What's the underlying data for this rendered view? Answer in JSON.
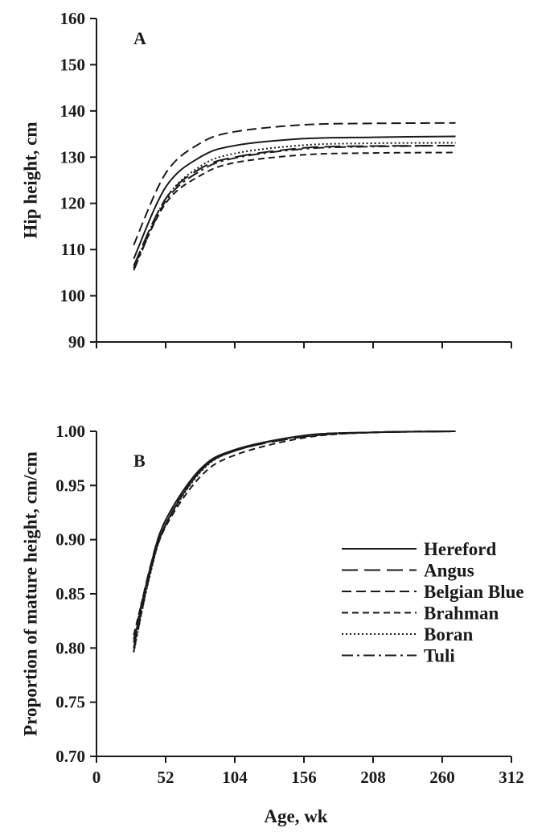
{
  "chart_data": [
    {
      "type": "line",
      "panel_label": "A",
      "xlabel": "",
      "ylabel": "Hip height, cm",
      "xlim": [
        0,
        312
      ],
      "ylim": [
        90,
        160
      ],
      "xticks": [
        0,
        52,
        104,
        156,
        208,
        260,
        312
      ],
      "yticks": [
        90,
        100,
        110,
        120,
        130,
        140,
        150,
        160
      ],
      "show_x_tick_labels": false,
      "series": [
        {
          "name": "Hereford",
          "x": [
            28,
            52,
            78,
            104,
            156,
            208,
            270
          ],
          "y": [
            108.0,
            123.5,
            130.0,
            132.5,
            134.0,
            134.3,
            134.5
          ]
        },
        {
          "name": "Angus",
          "x": [
            28,
            52,
            78,
            104,
            156,
            208,
            270
          ],
          "y": [
            106.5,
            121.0,
            127.5,
            130.0,
            132.0,
            132.4,
            132.5
          ]
        },
        {
          "name": "Belgian Blue",
          "x": [
            28,
            52,
            78,
            104,
            156,
            208,
            270
          ],
          "y": [
            111.0,
            126.5,
            133.0,
            135.5,
            137.0,
            137.3,
            137.4
          ]
        },
        {
          "name": "Brahman",
          "x": [
            28,
            52,
            78,
            104,
            156,
            208,
            270
          ],
          "y": [
            106.0,
            120.0,
            126.0,
            128.8,
            130.5,
            130.9,
            131.0
          ]
        },
        {
          "name": "Boran",
          "x": [
            28,
            52,
            78,
            104,
            156,
            208,
            270
          ],
          "y": [
            106.0,
            121.0,
            128.0,
            130.8,
            132.6,
            133.0,
            133.1
          ]
        },
        {
          "name": "Tuli",
          "x": [
            28,
            52,
            78,
            104,
            156,
            208,
            270
          ],
          "y": [
            105.5,
            120.5,
            127.0,
            129.8,
            131.8,
            132.3,
            132.5
          ]
        }
      ]
    },
    {
      "type": "line",
      "panel_label": "B",
      "xlabel": "Age, wk",
      "ylabel": "Proportion of mature height, cm/cm",
      "xlim": [
        0,
        312
      ],
      "ylim": [
        0.7,
        1.0
      ],
      "xticks": [
        0,
        52,
        104,
        156,
        208,
        260,
        312
      ],
      "yticks": [
        0.7,
        0.75,
        0.8,
        0.85,
        0.9,
        0.95,
        1.0
      ],
      "xtick_labels": [
        "0",
        "52",
        "104",
        "156",
        "208",
        "260",
        "312"
      ],
      "ytick_labels": [
        "0.70",
        "0.75",
        "0.80",
        "0.85",
        "0.90",
        "0.95",
        "1.00"
      ],
      "series": [
        {
          "name": "Hereford",
          "x": [
            28,
            40,
            52,
            78,
            104,
            156,
            208,
            270
          ],
          "y": [
            0.805,
            0.872,
            0.918,
            0.965,
            0.983,
            0.996,
            0.999,
            1.0
          ]
        },
        {
          "name": "Angus",
          "x": [
            28,
            40,
            52,
            78,
            104,
            156,
            208,
            270
          ],
          "y": [
            0.8,
            0.868,
            0.914,
            0.963,
            0.982,
            0.995,
            0.999,
            1.0
          ]
        },
        {
          "name": "Belgian Blue",
          "x": [
            28,
            40,
            52,
            78,
            104,
            156,
            208,
            270
          ],
          "y": [
            0.808,
            0.873,
            0.918,
            0.964,
            0.982,
            0.996,
            0.999,
            1.0
          ]
        },
        {
          "name": "Brahman",
          "x": [
            28,
            40,
            52,
            78,
            104,
            156,
            208,
            270
          ],
          "y": [
            0.812,
            0.87,
            0.912,
            0.958,
            0.978,
            0.994,
            0.999,
            1.0
          ]
        },
        {
          "name": "Boran",
          "x": [
            28,
            40,
            52,
            78,
            104,
            156,
            208,
            270
          ],
          "y": [
            0.796,
            0.866,
            0.913,
            0.962,
            0.982,
            0.996,
            0.999,
            1.0
          ]
        },
        {
          "name": "Tuli",
          "x": [
            28,
            40,
            52,
            78,
            104,
            156,
            208,
            270
          ],
          "y": [
            0.797,
            0.867,
            0.914,
            0.963,
            0.982,
            0.996,
            0.999,
            1.0
          ]
        }
      ]
    }
  ],
  "legend": {
    "placement": "lower-right of panel B",
    "entries": [
      {
        "name": "Hereford",
        "style": "solid"
      },
      {
        "name": "Angus",
        "style": "long-dash"
      },
      {
        "name": "Belgian Blue",
        "style": "medium-dash"
      },
      {
        "name": "Brahman",
        "style": "short-dash"
      },
      {
        "name": "Boran",
        "style": "dotted"
      },
      {
        "name": "Tuli",
        "style": "dash-dot"
      }
    ]
  },
  "line_styles": {
    "solid": "",
    "long-dash": "20 8",
    "medium-dash": "12 6",
    "short-dash": "8 5",
    "dotted": "2 3",
    "dash-dot": "14 5 3 5"
  },
  "colors": {
    "ink": "#1a1a1a",
    "background": "#ffffff"
  }
}
